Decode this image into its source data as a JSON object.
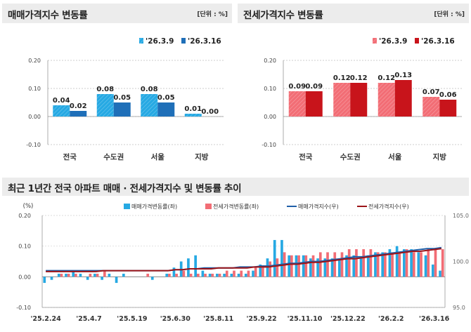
{
  "charts": {
    "sale": {
      "title": "매매가격지수 변동률",
      "unit": "[단위 : %]",
      "legend": [
        "'26.3.9",
        "'26.3.16"
      ],
      "colors": [
        "#26a9e3",
        "#1f6fb8"
      ],
      "categories": [
        "전국",
        "수도권",
        "서울",
        "지방"
      ],
      "values": [
        [
          0.04,
          0.08,
          0.08,
          0.01
        ],
        [
          0.02,
          0.05,
          0.05,
          0.0
        ]
      ],
      "value_labels": [
        [
          "0.04",
          "0.08",
          "0.08",
          "0.01"
        ],
        [
          "0.02",
          "0.05",
          "0.05",
          "0.00"
        ]
      ],
      "yticks": [
        "0.20",
        "0.10",
        "0.00",
        "-0.10"
      ]
    },
    "jeonse": {
      "title": "전세가격지수 변동률",
      "unit": "[단위 : %]",
      "legend": [
        "'26.3.9",
        "'26.3.16"
      ],
      "colors": [
        "#f26d75",
        "#c8141b"
      ],
      "categories": [
        "전국",
        "수도권",
        "서울",
        "지방"
      ],
      "values": [
        [
          0.09,
          0.12,
          0.12,
          0.07
        ],
        [
          0.09,
          0.12,
          0.13,
          0.06
        ]
      ],
      "value_labels": [
        [
          "0.09",
          "0.12",
          "0.12",
          "0.07"
        ],
        [
          "0.09",
          "0.12",
          "0.13",
          "0.06"
        ]
      ],
      "yticks": [
        "0.20",
        "0.10",
        "0.00",
        "-0.10"
      ]
    },
    "trend": {
      "title": "최근 1년간 전국 아파트 매매 · 전세가격지수 및 변동률 추이",
      "left_unit": "(%)",
      "legend": [
        "매매가격변동률(좌)",
        "전세가격변동률(좌)",
        "매매가격지수(우)",
        "전세가격지수(우)"
      ],
      "colors": [
        "#26a9e3",
        "#f26d75",
        "#1f5fa8",
        "#9c1418"
      ],
      "left_ticks": [
        "0.20",
        "0.10",
        "0.00",
        "-0.10"
      ],
      "right_ticks": [
        "105.0",
        "100.0",
        "95.0"
      ],
      "x_labels": [
        "'25.2.24",
        "'25.4.7",
        "'25.5.19",
        "'25.6.30",
        "'25.8.11",
        "'25.9.22",
        "'25.11.10",
        "'25.12.22",
        "'26.2.2",
        "'26.3.16"
      ]
    }
  },
  "chart_data": [
    {
      "type": "bar",
      "title": "매매가격지수 변동률",
      "categories": [
        "전국",
        "수도권",
        "서울",
        "지방"
      ],
      "series": [
        {
          "name": "'26.3.9",
          "values": [
            0.04,
            0.08,
            0.08,
            0.01
          ]
        },
        {
          "name": "'26.3.16",
          "values": [
            0.02,
            0.05,
            0.05,
            0.0
          ]
        }
      ],
      "ylim": [
        -0.1,
        0.2
      ],
      "ylabel": "%"
    },
    {
      "type": "bar",
      "title": "전세가격지수 변동률",
      "categories": [
        "전국",
        "수도권",
        "서울",
        "지방"
      ],
      "series": [
        {
          "name": "'26.3.9",
          "values": [
            0.09,
            0.12,
            0.12,
            0.07
          ]
        },
        {
          "name": "'26.3.16",
          "values": [
            0.09,
            0.12,
            0.13,
            0.06
          ]
        }
      ],
      "ylim": [
        -0.1,
        0.2
      ],
      "ylabel": "%"
    },
    {
      "type": "bar",
      "title": "최근 1년간 전국 아파트 매매 · 전세가격지수 및 변동률 추이",
      "x": [
        "'25.2.24",
        "'25.3.3",
        "'25.3.10",
        "'25.3.17",
        "'25.3.24",
        "'25.3.31",
        "'25.4.7",
        "'25.4.14",
        "'25.4.21",
        "'25.4.28",
        "'25.5.5",
        "'25.5.12",
        "'25.5.19",
        "'25.5.26",
        "'25.6.2",
        "'25.6.9",
        "'25.6.16",
        "'25.6.23",
        "'25.6.30",
        "'25.7.7",
        "'25.7.14",
        "'25.7.21",
        "'25.7.28",
        "'25.8.4",
        "'25.8.11",
        "'25.8.18",
        "'25.8.25",
        "'25.9.1",
        "'25.9.8",
        "'25.9.15",
        "'25.9.22",
        "'25.9.29",
        "'25.10.6",
        "'25.10.13",
        "'25.10.20",
        "'25.10.27",
        "'25.11.3",
        "'25.11.10",
        "'25.11.17",
        "'25.11.24",
        "'25.12.1",
        "'25.12.8",
        "'25.12.15",
        "'25.12.22",
        "'25.12.29",
        "'26.1.5",
        "'26.1.12",
        "'26.1.19",
        "'26.1.26",
        "'26.2.2",
        "'26.2.9",
        "'26.2.16",
        "'26.2.23",
        "'26.3.2",
        "'26.3.9",
        "'26.3.16"
      ],
      "series": [
        {
          "name": "매매가격변동률(좌)",
          "axis": "left",
          "values": [
            -0.02,
            -0.01,
            0.01,
            0.01,
            0.02,
            0.01,
            -0.01,
            0.01,
            -0.01,
            0.01,
            -0.02,
            0.01,
            0.0,
            0.0,
            0.0,
            -0.01,
            0.0,
            0.01,
            0.03,
            0.05,
            0.06,
            0.07,
            0.02,
            0.01,
            0.01,
            0.01,
            0.01,
            0.01,
            0.01,
            0.02,
            0.04,
            0.06,
            0.12,
            0.12,
            0.07,
            0.07,
            0.07,
            0.06,
            0.06,
            0.06,
            0.06,
            0.06,
            0.07,
            0.07,
            0.06,
            0.07,
            0.08,
            0.08,
            0.09,
            0.1,
            0.09,
            0.09,
            0.08,
            0.07,
            0.04,
            0.02
          ]
        },
        {
          "name": "전세가격변동률(좌)",
          "axis": "left",
          "values": [
            0.0,
            0.0,
            0.01,
            0.01,
            0.01,
            0.0,
            0.01,
            0.01,
            0.02,
            0.0,
            0.0,
            0.0,
            0.0,
            0.0,
            0.01,
            0.0,
            0.0,
            0.01,
            0.01,
            0.02,
            0.01,
            0.01,
            0.01,
            0.01,
            0.01,
            0.02,
            0.02,
            0.02,
            0.02,
            0.03,
            0.03,
            0.05,
            0.06,
            0.08,
            0.07,
            0.07,
            0.07,
            0.07,
            0.08,
            0.08,
            0.08,
            0.08,
            0.09,
            0.09,
            0.09,
            0.09,
            0.08,
            0.08,
            0.08,
            0.08,
            0.09,
            0.08,
            0.08,
            0.09,
            0.09,
            0.09
          ]
        },
        {
          "name": "매매가격지수(우)",
          "axis": "right",
          "values": [
            99.0,
            99.0,
            99.0,
            99.0,
            99.0,
            99.0,
            99.0,
            99.0,
            99.0,
            99.0,
            99.0,
            99.0,
            99.0,
            99.0,
            99.0,
            99.0,
            99.0,
            99.0,
            99.1,
            99.1,
            99.2,
            99.2,
            99.3,
            99.3,
            99.3,
            99.3,
            99.3,
            99.4,
            99.4,
            99.4,
            99.5,
            99.5,
            99.6,
            99.7,
            99.8,
            99.8,
            99.9,
            100.0,
            100.0,
            100.1,
            100.2,
            100.3,
            100.4,
            100.5,
            100.5,
            100.6,
            100.7,
            100.8,
            100.9,
            101.0,
            101.1,
            101.2,
            101.3,
            101.4,
            101.4,
            101.5
          ]
        },
        {
          "name": "전세가격지수(우)",
          "axis": "right",
          "values": [
            98.9,
            98.9,
            98.9,
            98.9,
            98.9,
            98.9,
            98.9,
            98.9,
            99.0,
            99.0,
            99.0,
            99.0,
            99.0,
            99.0,
            99.0,
            99.0,
            99.0,
            99.0,
            99.1,
            99.1,
            99.2,
            99.2,
            99.2,
            99.2,
            99.3,
            99.3,
            99.3,
            99.3,
            99.3,
            99.4,
            99.4,
            99.4,
            99.5,
            99.6,
            99.7,
            99.7,
            99.8,
            99.9,
            99.9,
            100.0,
            100.1,
            100.2,
            100.3,
            100.3,
            100.4,
            100.5,
            100.6,
            100.7,
            100.8,
            100.9,
            101.0,
            101.1,
            101.1,
            101.2,
            101.3,
            101.4
          ]
        }
      ],
      "ylim": [
        -0.1,
        0.2
      ],
      "ylim_right": [
        95.0,
        105.0
      ],
      "ylabel": "(%)",
      "x_tick_labels": [
        "'25.2.24",
        "'25.4.7",
        "'25.5.19",
        "'25.6.30",
        "'25.8.11",
        "'25.9.22",
        "'25.11.10",
        "'25.12.22",
        "'26.2.2",
        "'26.3.16"
      ]
    }
  ]
}
